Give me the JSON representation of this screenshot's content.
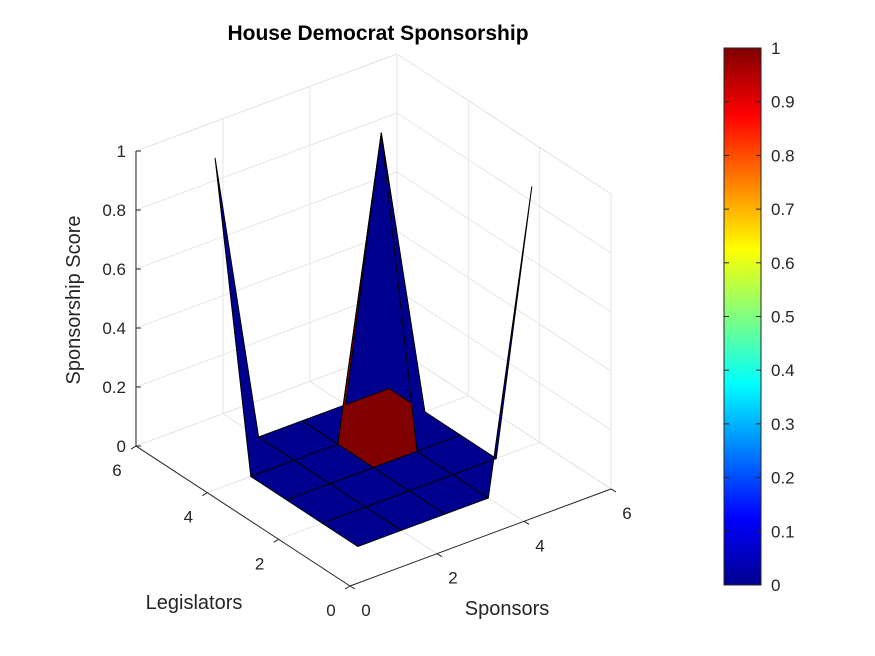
{
  "chart_data": {
    "type": "surface3d",
    "title": "House Democrat Sponsorship",
    "xlabel": "Sponsors",
    "ylabel": "Legislators",
    "zlabel": "Sponsorship Score",
    "xlim": [
      0,
      6
    ],
    "ylim": [
      0,
      6
    ],
    "zlim": [
      0,
      1
    ],
    "x_ticks": [
      "0",
      "2",
      "4",
      "6"
    ],
    "y_ticks": [
      "0",
      "2",
      "4",
      "6"
    ],
    "z_ticks": [
      "0",
      "0.2",
      "0.4",
      "0.6",
      "0.8",
      "1"
    ],
    "grid": true,
    "colormap": "jet",
    "colorbar": {
      "location": "right",
      "ticks": [
        "0",
        "0.1",
        "0.2",
        "0.3",
        "0.4",
        "0.5",
        "0.6",
        "0.7",
        "0.8",
        "0.9",
        "1"
      ],
      "range": [
        0,
        1
      ]
    },
    "x": [
      1,
      2,
      3,
      4,
      5
    ],
    "y": [
      1,
      2,
      3,
      4,
      5
    ],
    "z": [
      [
        0,
        0,
        0,
        0,
        1
      ],
      [
        0,
        0,
        0,
        0,
        0
      ],
      [
        0,
        0,
        0,
        0,
        0
      ],
      [
        0,
        0,
        0,
        1,
        0
      ],
      [
        1,
        0,
        0,
        0,
        0
      ]
    ],
    "highlight_cells": [
      [
        2,
        2
      ]
    ],
    "colors": {
      "low": "#00008f",
      "high": "#800000",
      "grid": "#e6e6e6",
      "axis": "#262626"
    }
  }
}
